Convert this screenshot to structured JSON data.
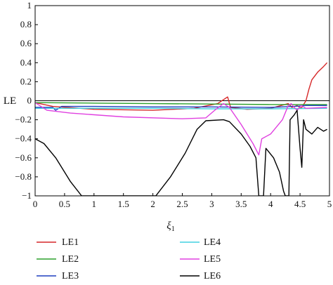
{
  "chart_data": {
    "type": "line",
    "xlabel": "ξ",
    "xlabel_sub": "1",
    "ylabel": "LE",
    "xlim": [
      0,
      5
    ],
    "ylim": [
      -1,
      1
    ],
    "xticks": [
      0,
      0.5,
      1,
      1.5,
      2,
      2.5,
      3,
      3.5,
      4,
      4.5,
      5
    ],
    "xtick_labels": [
      "0",
      "0.5",
      "1",
      "1.5",
      "2",
      "2.5",
      "3",
      "3.5",
      "4",
      "4.5",
      "5"
    ],
    "yticks": [
      1,
      0.8,
      0.6,
      0.4,
      0.2,
      0,
      -0.2,
      -0.4,
      -0.6,
      -0.8,
      -1
    ],
    "ytick_labels": [
      "1",
      "0.8",
      "0.6",
      "0.4",
      "0.2",
      "0",
      "−0.2",
      "−0.4",
      "−0.6",
      "−0.8",
      "−1"
    ],
    "grid": false,
    "legend_position": "bottom",
    "series": [
      {
        "name": "LE1",
        "color": "#d62728",
        "points": [
          [
            0,
            -0.02
          ],
          [
            0.3,
            -0.06
          ],
          [
            1,
            -0.09
          ],
          [
            2,
            -0.1
          ],
          [
            2.7,
            -0.08
          ],
          [
            3.1,
            -0.03
          ],
          [
            3.27,
            0.04
          ],
          [
            3.32,
            -0.07
          ],
          [
            3.6,
            -0.09
          ],
          [
            4.0,
            -0.08
          ],
          [
            4.3,
            -0.03
          ],
          [
            4.36,
            -0.07
          ],
          [
            4.45,
            -0.05
          ],
          [
            4.52,
            -0.08
          ],
          [
            4.6,
            0.0
          ],
          [
            4.65,
            0.12
          ],
          [
            4.7,
            0.22
          ],
          [
            4.8,
            0.3
          ],
          [
            4.9,
            0.36
          ],
          [
            4.96,
            0.4
          ]
        ]
      },
      {
        "name": "LE2",
        "color": "#2ca02c",
        "points": [
          [
            0,
            -0.02
          ],
          [
            1,
            -0.025
          ],
          [
            2,
            -0.03
          ],
          [
            3,
            -0.035
          ],
          [
            4,
            -0.04
          ],
          [
            4.5,
            -0.04
          ],
          [
            4.96,
            -0.04
          ]
        ]
      },
      {
        "name": "LE3",
        "color": "#1f3fbf",
        "points": [
          [
            0,
            -0.07
          ],
          [
            0.3,
            -0.07
          ],
          [
            0.35,
            -0.1
          ],
          [
            0.45,
            -0.06
          ],
          [
            1,
            -0.06
          ],
          [
            2,
            -0.065
          ],
          [
            3,
            -0.065
          ],
          [
            4,
            -0.07
          ],
          [
            4.4,
            -0.06
          ],
          [
            4.6,
            -0.05
          ],
          [
            4.96,
            -0.05
          ]
        ]
      },
      {
        "name": "LE4",
        "color": "#40d0e0",
        "points": [
          [
            0,
            -0.08
          ],
          [
            1,
            -0.08
          ],
          [
            2,
            -0.08
          ],
          [
            3,
            -0.085
          ],
          [
            4,
            -0.085
          ],
          [
            4.96,
            -0.08
          ]
        ]
      },
      {
        "name": "LE5",
        "color": "#e040e0",
        "points": [
          [
            0,
            -0.02
          ],
          [
            0.2,
            -0.1
          ],
          [
            0.6,
            -0.13
          ],
          [
            1.5,
            -0.17
          ],
          [
            2.5,
            -0.19
          ],
          [
            2.9,
            -0.18
          ],
          [
            3.05,
            -0.1
          ],
          [
            3.2,
            -0.03
          ],
          [
            3.3,
            -0.07
          ],
          [
            3.5,
            -0.25
          ],
          [
            3.7,
            -0.45
          ],
          [
            3.8,
            -0.57
          ],
          [
            3.85,
            -0.4
          ],
          [
            4.0,
            -0.35
          ],
          [
            4.2,
            -0.2
          ],
          [
            4.3,
            -0.05
          ],
          [
            4.35,
            -0.03
          ],
          [
            4.4,
            -0.07
          ],
          [
            4.45,
            -0.1
          ],
          [
            4.52,
            -0.05
          ],
          [
            4.6,
            -0.08
          ],
          [
            4.96,
            -0.07
          ]
        ]
      },
      {
        "name": "LE6",
        "color": "#000000",
        "points": [
          [
            0,
            -0.4
          ],
          [
            0.15,
            -0.45
          ],
          [
            0.35,
            -0.6
          ],
          [
            0.6,
            -0.85
          ],
          [
            0.79,
            -1.0
          ],
          [
            2.05,
            -1.0
          ],
          [
            2.3,
            -0.8
          ],
          [
            2.55,
            -0.55
          ],
          [
            2.75,
            -0.3
          ],
          [
            2.9,
            -0.21
          ],
          [
            3.2,
            -0.2
          ],
          [
            3.3,
            -0.22
          ],
          [
            3.5,
            -0.35
          ],
          [
            3.65,
            -0.48
          ],
          [
            3.75,
            -0.6
          ],
          [
            3.8,
            -1.0
          ],
          [
            3.88,
            -1.0
          ],
          [
            3.92,
            -0.5
          ],
          [
            4.05,
            -0.6
          ],
          [
            4.15,
            -0.75
          ],
          [
            4.22,
            -0.95
          ],
          [
            4.25,
            -1.0
          ],
          [
            4.31,
            -1.0
          ],
          [
            4.33,
            -0.2
          ],
          [
            4.4,
            -0.15
          ],
          [
            4.45,
            -0.1
          ],
          [
            4.5,
            -0.5
          ],
          [
            4.53,
            -0.7
          ],
          [
            4.56,
            -0.2
          ],
          [
            4.6,
            -0.3
          ],
          [
            4.7,
            -0.35
          ],
          [
            4.8,
            -0.28
          ],
          [
            4.9,
            -0.32
          ],
          [
            4.96,
            -0.3
          ]
        ]
      }
    ]
  }
}
